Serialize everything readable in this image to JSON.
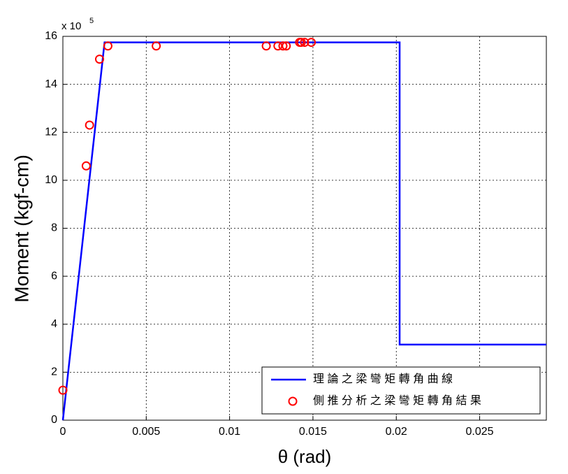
{
  "chart_data": {
    "type": "line-scatter",
    "xlabel": "θ (rad)",
    "ylabel": "Moment (kgf-cm)",
    "y_scale_label": "x 10",
    "y_scale_exponent": "5",
    "xlim": [
      0,
      0.029
    ],
    "ylim": [
      0,
      16
    ],
    "xticks": [
      0,
      0.005,
      0.01,
      0.015,
      0.02,
      0.025
    ],
    "yticks": [
      0,
      2,
      4,
      6,
      8,
      10,
      12,
      14,
      16
    ],
    "grid": true,
    "legend": "lower right",
    "series": [
      {
        "name": "理 論 之 梁 彎 矩 轉 角 曲 線",
        "type": "line",
        "color": "#0000ff",
        "x": [
          0,
          0.0025,
          0.0202,
          0.0202,
          0.029
        ],
        "values": [
          0,
          15.75,
          15.75,
          3.15,
          3.15
        ]
      },
      {
        "name": "側 推 分 析 之 梁 彎 矩 轉 角 結 果",
        "type": "scatter",
        "color": "#ff0000",
        "x": [
          0,
          0.0014,
          0.0016,
          0.0022,
          0.0027,
          0.0056,
          0.0122,
          0.0129,
          0.0132,
          0.0134,
          0.0142,
          0.0143,
          0.0145,
          0.0149
        ],
        "values": [
          1.25,
          10.6,
          12.3,
          15.05,
          15.6,
          15.6,
          15.6,
          15.6,
          15.6,
          15.6,
          15.75,
          15.75,
          15.75,
          15.75
        ]
      }
    ]
  }
}
